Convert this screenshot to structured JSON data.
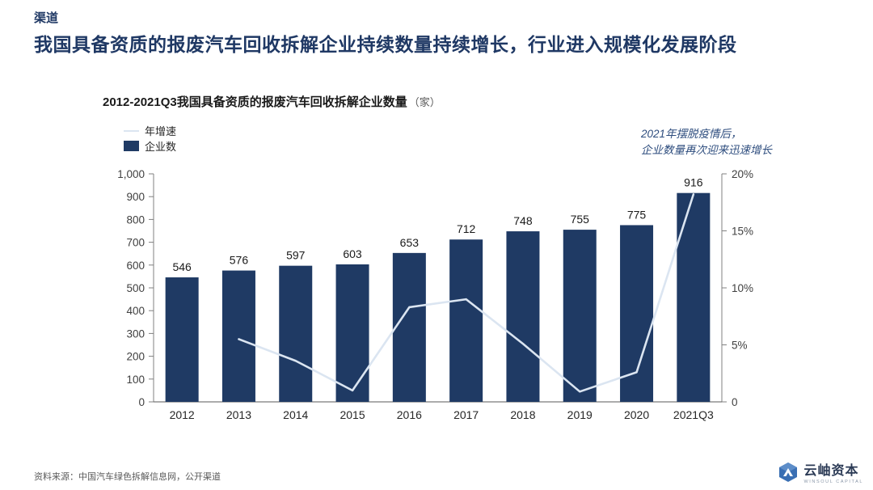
{
  "header": {
    "kicker": "渠道",
    "title": "我国具备资质的报废汽车回收拆解企业持续数量持续增长，行业进入规模化发展阶段"
  },
  "annotation": {
    "line1": "2021年摆脱疫情后，",
    "line2": "企业数量再次迎来迅速增长"
  },
  "chart_data": {
    "type": "bar",
    "title": "2012-2021Q3我国具备资质的报废汽车回收拆解企业数量",
    "title_unit": "（家）",
    "categories": [
      "2012",
      "2013",
      "2014",
      "2015",
      "2016",
      "2017",
      "2018",
      "2019",
      "2020",
      "2021Q3"
    ],
    "series": [
      {
        "name": "企业数",
        "type": "bar",
        "axis": "left",
        "values": [
          546,
          576,
          597,
          603,
          653,
          712,
          748,
          755,
          775,
          916
        ]
      },
      {
        "name": "年增速",
        "type": "line",
        "axis": "right",
        "values": [
          null,
          5.5,
          3.6,
          1.0,
          8.3,
          9.0,
          5.1,
          0.9,
          2.6,
          18.2
        ]
      }
    ],
    "left_axis": {
      "min": 0,
      "max": 1000,
      "tick_labels": [
        "0",
        "100",
        "200",
        "300",
        "400",
        "500",
        "600",
        "700",
        "800",
        "900",
        "1,000"
      ]
    },
    "right_axis": {
      "min": 0,
      "max": 20,
      "tick_labels": [
        "0",
        "5%",
        "10%",
        "15%",
        "20%"
      ]
    },
    "legend_position": "top-left",
    "grid": false,
    "colors": {
      "bar": "#1f3a64",
      "line": "#dbe5f1",
      "axis": "#808080"
    }
  },
  "footer": {
    "source": "资料来源：中国汽车绿色拆解信息网，公开渠道",
    "logo_zh": "云岫资本",
    "logo_en": "WINSOUL CAPITAL"
  }
}
